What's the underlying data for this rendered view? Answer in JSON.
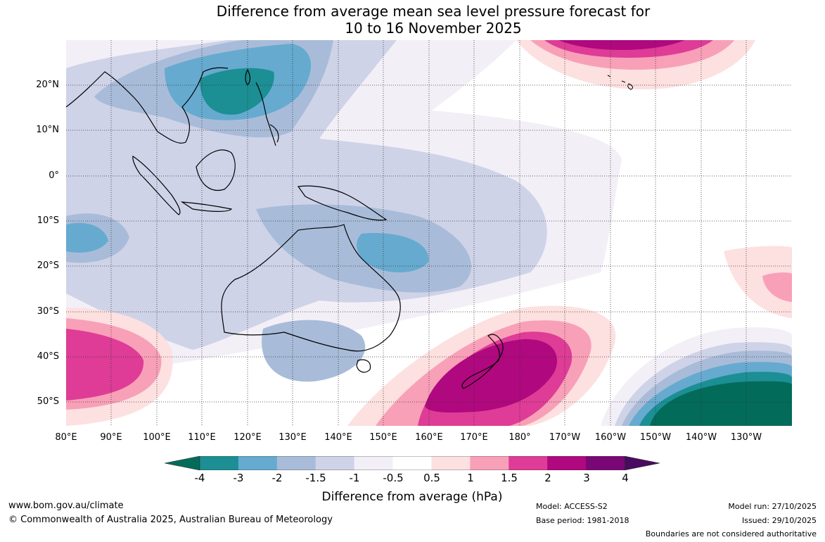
{
  "title": {
    "line1": "Difference from average mean sea level pressure forecast for",
    "line2": "10 to 16 November 2025"
  },
  "map": {
    "lat_labels": [
      "20°N",
      "10°N",
      "0°",
      "10°S",
      "20°S",
      "30°S",
      "40°S",
      "50°S"
    ],
    "lon_labels": [
      "80°E",
      "90°E",
      "100°E",
      "110°E",
      "120°E",
      "130°E",
      "140°E",
      "150°E",
      "160°E",
      "170°E",
      "180°",
      "170°W",
      "160°W",
      "150°W",
      "140°W",
      "130°W"
    ]
  },
  "colorbar": {
    "ticks": [
      "-4",
      "-3",
      "-2",
      "-1.5",
      "-1",
      "-0.5",
      "0.5",
      "1",
      "1.5",
      "2",
      "3",
      "4"
    ],
    "colors": [
      "#1b8f94",
      "#66aacf",
      "#a8bcd9",
      "#cfd3e8",
      "#f3eff7",
      "#ffffff",
      "#fde0e0",
      "#f8a0b8",
      "#de3c96",
      "#b0087e",
      "#7a0776"
    ],
    "min_color": "#036b5a",
    "max_color": "#4a0a60",
    "label": "Difference from average (hPa)"
  },
  "footer": {
    "website": "www.bom.gov.au/climate",
    "copyright": "© Commonwealth of Australia 2025, Australian Bureau of Meteorology",
    "model": "Model: ACCESS-S2",
    "base_period": "Base period: 1981-2018",
    "model_run": "Model run: 27/10/2025",
    "issued": "Issued: 29/10/2025",
    "disclaimer": "Boundaries are not considered authoritative"
  }
}
